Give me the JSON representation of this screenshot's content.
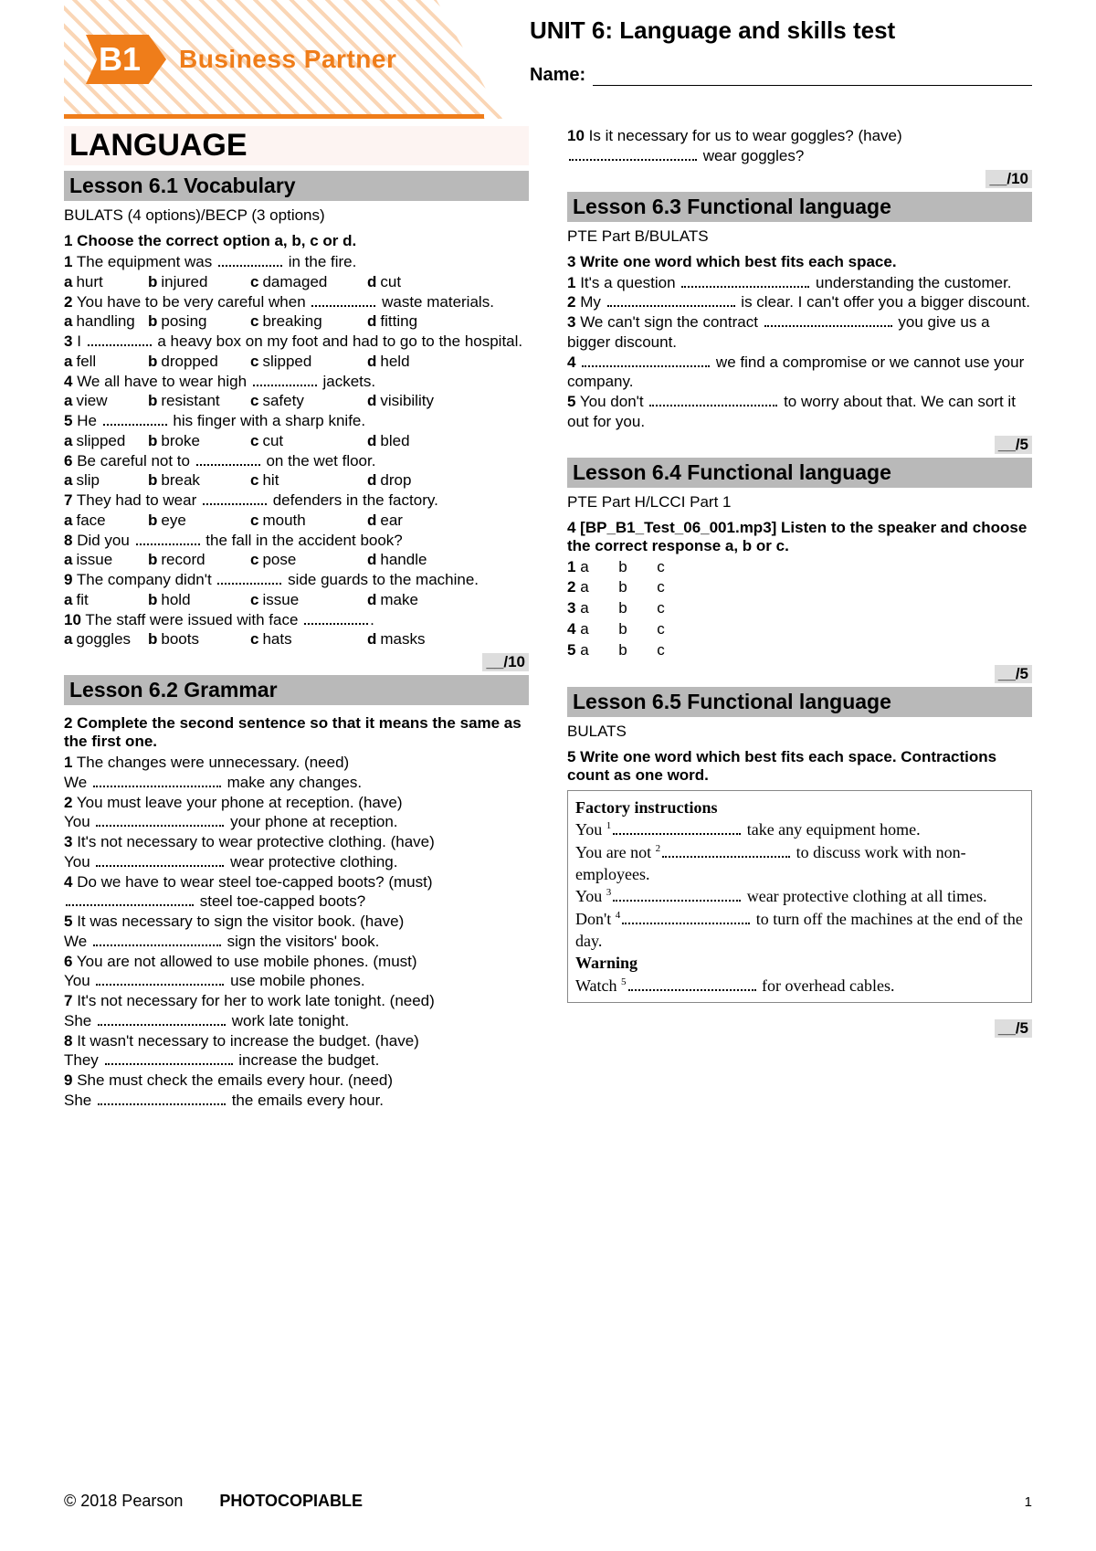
{
  "colors": {
    "orange": "#ef7d1a",
    "hatch_light": "#f5b57a",
    "grey_bar": "#b9b9b9",
    "pink_bg": "#fdf4f2",
    "score_bg": "#dddddd"
  },
  "header": {
    "b1": "B1",
    "brand": "Business Partner",
    "unit_title": "UNIT 6: Language and skills test",
    "name_label": "Name:"
  },
  "footer": {
    "copyright": "© 2018 Pearson",
    "photocopy": "PHOTOCOPIABLE",
    "page": "1"
  },
  "big_title": "LANGUAGE",
  "l61": {
    "bar": "Lesson 6.1 Vocabulary",
    "sub": "BULATS (4 options)/BECP (3 options)",
    "instr": "1 Choose the correct option a, b, c or d.",
    "q": [
      {
        "n": "1",
        "t": "The equipment was ",
        " t2": " in the fire.",
        "o": [
          "hurt",
          "injured",
          "damaged",
          "cut"
        ]
      },
      {
        "n": "2",
        "t": "You have to be very careful when ",
        " t2": " waste materials.",
        "o": [
          "handling",
          "posing",
          "breaking",
          "fitting"
        ]
      },
      {
        "n": "3",
        "t": "I ",
        " t2": " a heavy box on my foot and had to go to the hospital.",
        "o": [
          "fell",
          "dropped",
          "slipped",
          "held"
        ]
      },
      {
        "n": "4",
        "t": "We all have to wear high ",
        " t2": " jackets.",
        "o": [
          "view",
          "resistant",
          "safety",
          "visibility"
        ]
      },
      {
        "n": "5",
        "t": "He ",
        " t2": " his finger with a sharp knife.",
        "o": [
          "slipped",
          "broke",
          "cut",
          "bled"
        ]
      },
      {
        "n": "6",
        "t": "Be careful not to ",
        " t2": " on the wet floor.",
        "o": [
          "slip",
          "break",
          "hit",
          "drop"
        ]
      },
      {
        "n": "7",
        "t": "They had to wear ",
        " t2": " defenders in the factory.",
        "o": [
          "face",
          "eye",
          "mouth",
          "ear"
        ]
      },
      {
        "n": "8",
        "t": "Did you ",
        " t2": " the fall in the accident book?",
        "o": [
          "issue",
          "record",
          "pose",
          "handle"
        ]
      },
      {
        "n": "9",
        "t": "The company didn't ",
        " t2": " side guards to the machine.",
        "o": [
          "fit",
          "hold",
          "issue",
          "make"
        ]
      },
      {
        "n": "10",
        "t": "The staff were issued with face ",
        " t2": ".",
        "o": [
          "goggles",
          "boots",
          "hats",
          "masks"
        ]
      }
    ],
    "score": "__/10"
  },
  "l62": {
    "bar": "Lesson 6.2 Grammar",
    "instr": "2 Complete the second sentence so that it means the same as the first one.",
    "items": [
      {
        "n": "1",
        "a": "The changes were unnecessary. (need)",
        "b_pre": "We ",
        "b_post": " make any changes."
      },
      {
        "n": "2",
        "a": "You must leave your phone at reception. (have)",
        "b_pre": "You ",
        "b_post": " your phone at reception."
      },
      {
        "n": "3",
        "a": "It's not necessary to wear protective clothing. (have)",
        "b_pre": "You ",
        "b_post": " wear protective clothing."
      },
      {
        "n": "4",
        "a": "Do we have to wear steel toe-capped boots? (must)",
        "b_pre": "",
        "b_post": " steel toe-capped boots?"
      },
      {
        "n": "5",
        "a": "It was necessary to sign the visitor book. (have)",
        "b_pre": "We ",
        "b_post": " sign the visitors' book."
      },
      {
        "n": "6",
        "a": "You are not allowed to use mobile phones. (must)",
        "b_pre": "You ",
        "b_post": " use mobile phones."
      },
      {
        "n": "7",
        "a": "It's not necessary for her to work late tonight. (need)",
        "b_pre": "She ",
        "b_post": " work late tonight."
      },
      {
        "n": "8",
        "a": "It wasn't necessary to increase the budget. (have)",
        "b_pre": "They ",
        "b_post": " increase the budget."
      },
      {
        "n": "9",
        "a": "She must check the emails every hour. (need)",
        "b_pre": "She ",
        "b_post": " the emails every hour."
      }
    ],
    "q10_a": "Is it necessary for us to wear goggles? (have)",
    "q10_b_post": " wear goggles?",
    "score": "__/10"
  },
  "l63": {
    "bar": "Lesson 6.3 Functional language",
    "sub": "PTE Part B/BULATS",
    "instr": "3 Write one word which best fits each space.",
    "items": [
      {
        "n": "1",
        "pre": "It's a question ",
        "post": " understanding the customer."
      },
      {
        "n": "2",
        "pre": "My ",
        "post": " is clear. I can't offer you a bigger discount."
      },
      {
        "n": "3",
        "pre": "We can't sign the contract ",
        "post": " you give us a bigger discount."
      },
      {
        "n": "4",
        "pre": "",
        "post": " we find a compromise or we cannot use your company."
      },
      {
        "n": "5",
        "pre": "You don't ",
        "post": " to worry about that. We can sort it out for you."
      }
    ],
    "score": "__/5"
  },
  "l64": {
    "bar": "Lesson 6.4 Functional language",
    "sub": "PTE Part H/LCCI Part 1",
    "instr": "4 [BP_B1_Test_06_001.mp3] Listen to the speaker and choose the correct response a, b or c.",
    "rows": [
      "1",
      "2",
      "3",
      "4",
      "5"
    ],
    "score": "__/5"
  },
  "l65": {
    "bar": "Lesson 6.5 Functional language",
    "sub": "BULATS",
    "instr": "5 Write one word which best fits each space. Contractions count as one word.",
    "box_title": "Factory instructions",
    "lines": [
      {
        "pre": "You ",
        "sup": "1",
        "post": " take any equipment home."
      },
      {
        "pre": "You are not ",
        "sup": "2",
        "post": " to discuss work with non-employees."
      },
      {
        "pre": "You ",
        "sup": "3",
        "post": " wear protective clothing at all times."
      },
      {
        "pre": "Don't ",
        "sup": "4",
        "post": " to turn off the machines at the end of the day."
      }
    ],
    "warning": "Warning",
    "warn_line": {
      "pre": "Watch ",
      "sup": "5",
      "post": " for overhead cables."
    },
    "score": "__/5"
  }
}
